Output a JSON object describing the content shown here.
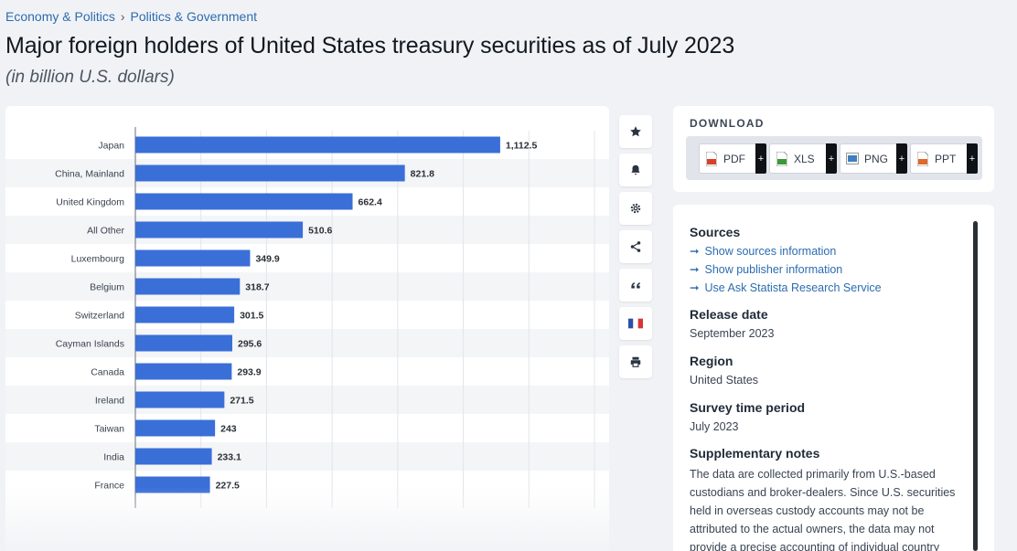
{
  "breadcrumb": {
    "items": [
      "Economy & Politics",
      "Politics & Government"
    ],
    "separator": "›"
  },
  "title": "Major foreign holders of United States treasury securities as of July 2023",
  "subtitle": "(in billion U.S. dollars)",
  "chart_data": {
    "type": "bar",
    "orientation": "horizontal",
    "categories": [
      "Japan",
      "China, Mainland",
      "United Kingdom",
      "All Other",
      "Luxembourg",
      "Belgium",
      "Switzerland",
      "Cayman Islands",
      "Canada",
      "Ireland",
      "Taiwan",
      "India",
      "France"
    ],
    "values": [
      1112.5,
      821.8,
      662.4,
      510.6,
      349.9,
      318.7,
      301.5,
      295.6,
      293.9,
      271.5,
      243,
      233.1,
      227.5
    ],
    "value_labels": [
      "1,112.5",
      "821.8",
      "662.4",
      "510.6",
      "349.9",
      "318.7",
      "301.5",
      "295.6",
      "293.9",
      "271.5",
      "243",
      "233.1",
      "227.5"
    ],
    "xlim": [
      0,
      1400
    ],
    "grid": true,
    "bar_color": "#3a6fd8"
  },
  "toolbar": {
    "buttons": [
      {
        "icon": "star-icon",
        "name": "favorite-button"
      },
      {
        "icon": "bell-icon",
        "name": "notification-button"
      },
      {
        "icon": "gear-icon",
        "name": "settings-button"
      },
      {
        "icon": "share-icon",
        "name": "share-button"
      },
      {
        "icon": "quote-icon",
        "name": "cite-button"
      },
      {
        "icon": "french-flag-icon",
        "name": "language-button"
      },
      {
        "icon": "print-icon",
        "name": "print-button"
      }
    ]
  },
  "download": {
    "title": "DOWNLOAD",
    "buttons": [
      {
        "label": "PDF",
        "color": "#d9402b"
      },
      {
        "label": "XLS",
        "color": "#3a9a3a"
      },
      {
        "label": "PNG",
        "color": "#3f7fbf"
      },
      {
        "label": "PPT",
        "color": "#e0692a"
      }
    ],
    "plus": "+"
  },
  "info": {
    "sources_heading": "Sources",
    "links": [
      "Show sources information",
      "Show publisher information",
      "Use Ask Statista Research Service"
    ],
    "link_arrow": "➞",
    "release_heading": "Release date",
    "release_value": "September 2023",
    "region_heading": "Region",
    "region_value": "United States",
    "period_heading": "Survey time period",
    "period_value": "July 2023",
    "notes_heading": "Supplementary notes",
    "notes_text": "The data are collected primarily from U.S.-based custodians and broker-dealers. Since U.S. securities held in overseas custody accounts may not be attributed to the actual owners, the data may not provide a precise accounting of individual country"
  }
}
